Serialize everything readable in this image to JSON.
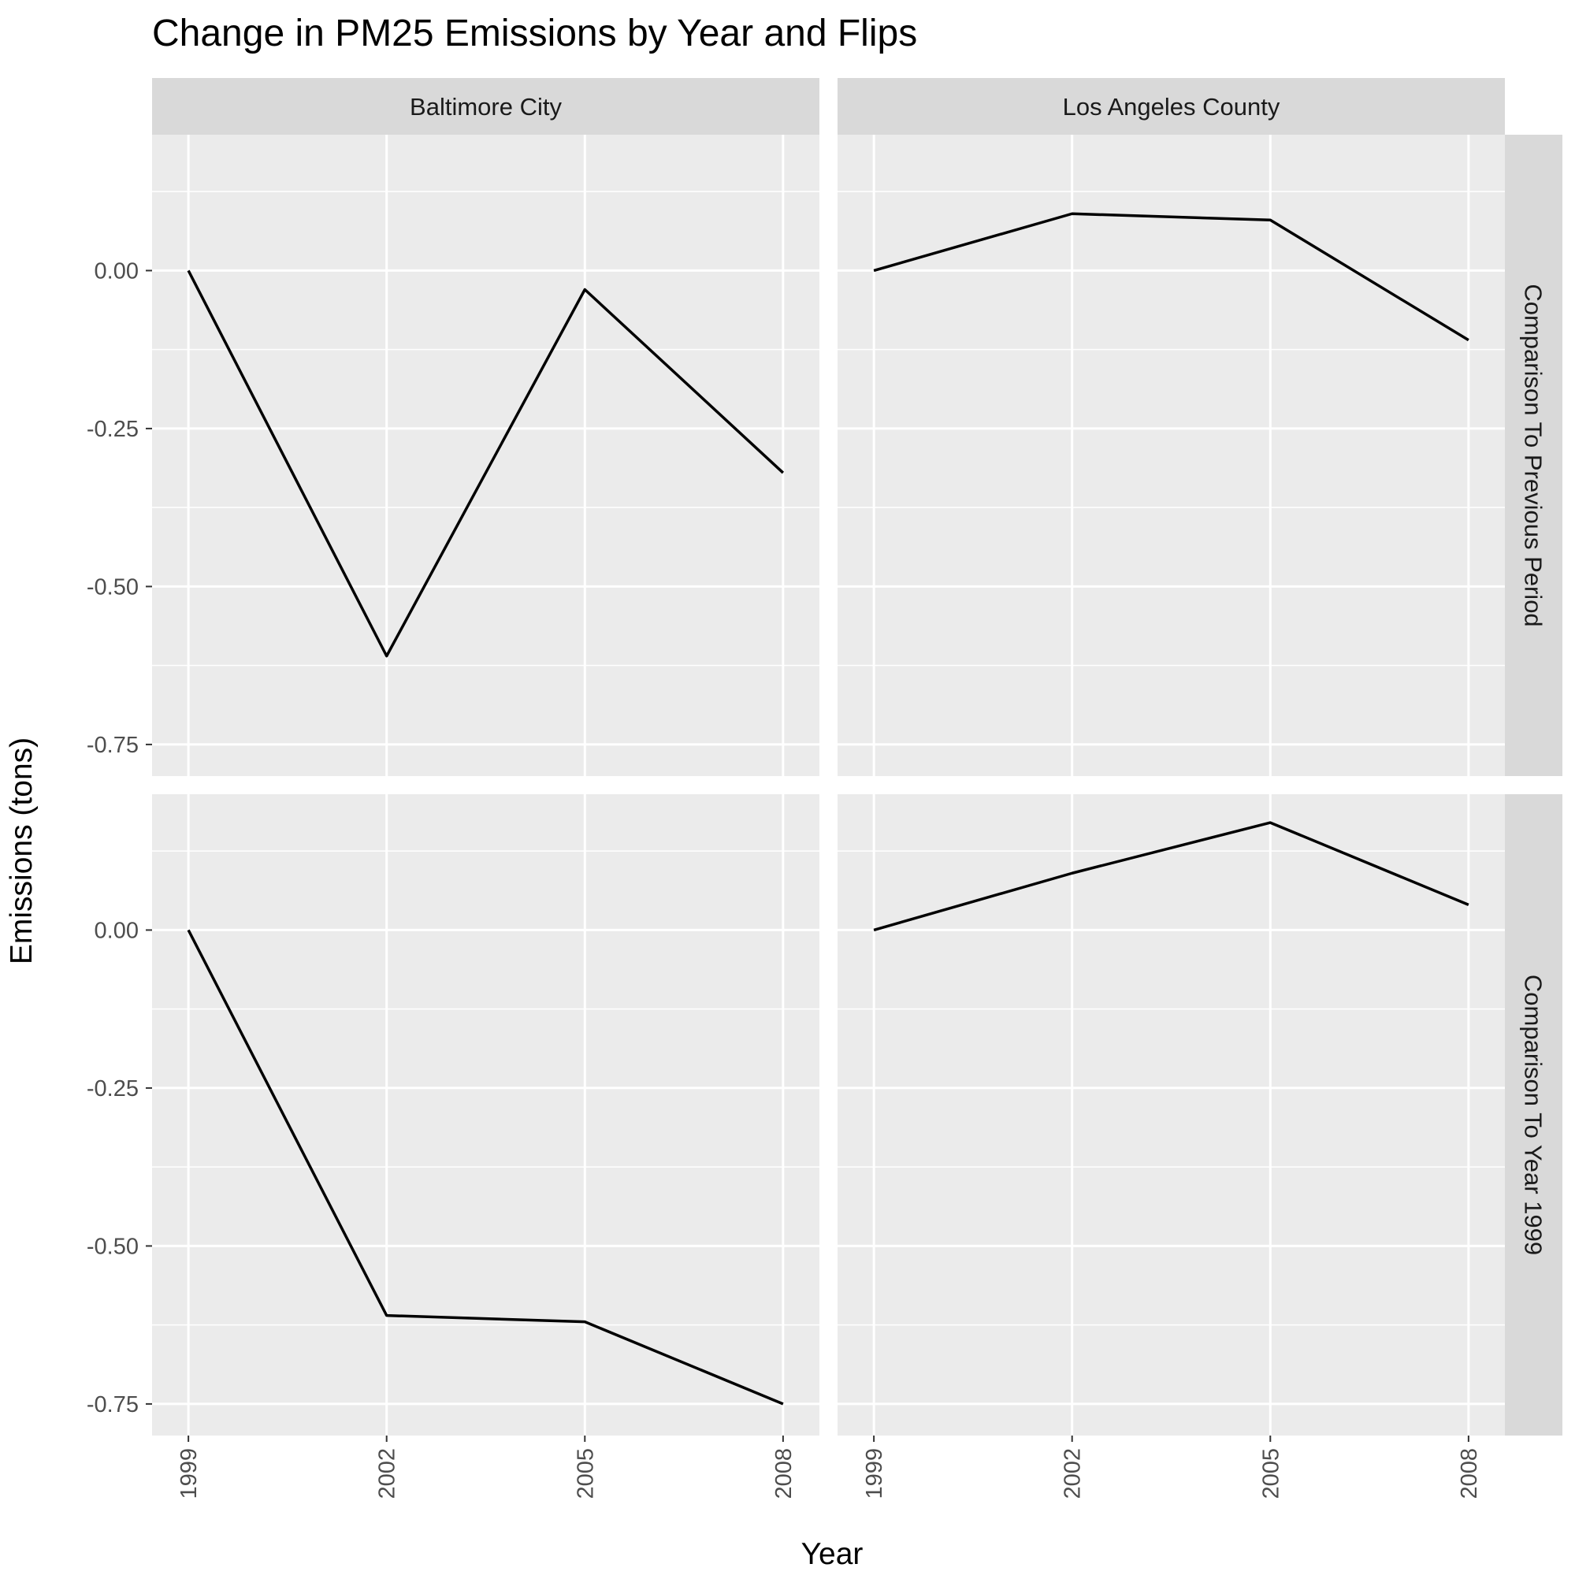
{
  "chart_data": {
    "type": "line",
    "title": "Change in PM25 Emissions by Year and Flips",
    "xlabel": "Year",
    "ylabel": "Emissions (tons)",
    "x": [
      1999,
      2002,
      2005,
      2008
    ],
    "x_tick_labels": [
      "1999",
      "2002",
      "2005",
      "2008"
    ],
    "y_ticks": [
      0.0,
      -0.25,
      -0.5,
      -0.75
    ],
    "y_tick_labels": [
      "0.00",
      "-0.25",
      "-0.50",
      "-0.75"
    ],
    "ylim": [
      -0.8,
      0.215
    ],
    "xlim": [
      1998.45,
      2008.55
    ],
    "grid": true,
    "facet_columns": [
      "Baltimore City",
      "Los Angeles County"
    ],
    "facet_rows": [
      "Comparison To Previous Period",
      "Comparison To Year 1999"
    ],
    "panels": [
      {
        "column": "Baltimore City",
        "row": "Comparison To Previous Period",
        "values": [
          0.0,
          -0.61,
          -0.03,
          -0.32
        ]
      },
      {
        "column": "Los Angeles County",
        "row": "Comparison To Previous Period",
        "values": [
          0.0,
          0.09,
          0.08,
          -0.11
        ]
      },
      {
        "column": "Baltimore City",
        "row": "Comparison To Year 1999",
        "values": [
          0.0,
          -0.61,
          -0.62,
          -0.75
        ]
      },
      {
        "column": "Los Angeles County",
        "row": "Comparison To Year 1999",
        "values": [
          0.0,
          0.09,
          0.17,
          0.04
        ]
      }
    ],
    "line_color": "#000000"
  }
}
